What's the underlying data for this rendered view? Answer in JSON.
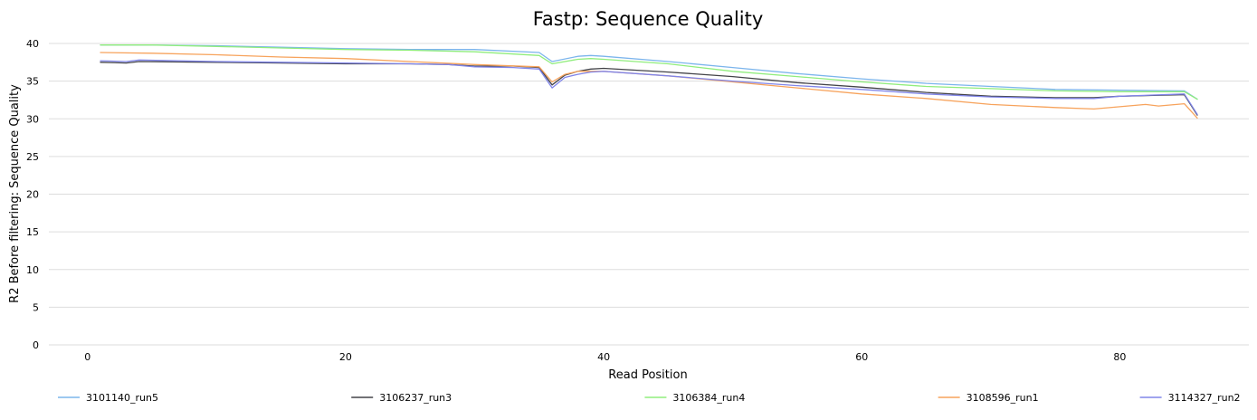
{
  "chart_data": {
    "type": "line",
    "title": "Fastp: Sequence Quality",
    "xlabel": "Read Position",
    "ylabel": "R2 Before filtering: Sequence Quality",
    "xlim": [
      -3,
      90
    ],
    "ylim": [
      0,
      40
    ],
    "x_ticks": [
      0,
      20,
      40,
      60,
      80
    ],
    "y_ticks": [
      0,
      5,
      10,
      15,
      20,
      25,
      30,
      35,
      40
    ],
    "grid": true,
    "legend_position": "bottom",
    "series": [
      {
        "name": "3101140_run5",
        "color": "#7cb5ec",
        "points": [
          [
            1,
            39.8
          ],
          [
            5,
            39.8
          ],
          [
            10,
            39.7
          ],
          [
            15,
            39.5
          ],
          [
            20,
            39.3
          ],
          [
            25,
            39.2
          ],
          [
            30,
            39.2
          ],
          [
            35,
            38.8
          ],
          [
            36,
            37.6
          ],
          [
            38,
            38.3
          ],
          [
            39,
            38.4
          ],
          [
            40,
            38.3
          ],
          [
            45,
            37.6
          ],
          [
            50,
            36.8
          ],
          [
            55,
            36.0
          ],
          [
            60,
            35.3
          ],
          [
            65,
            34.7
          ],
          [
            70,
            34.3
          ],
          [
            75,
            33.9
          ],
          [
            80,
            33.8
          ],
          [
            85,
            33.7
          ],
          [
            86,
            32.6
          ]
        ]
      },
      {
        "name": "3106237_run3",
        "color": "#434348",
        "points": [
          [
            1,
            37.5
          ],
          [
            3,
            37.4
          ],
          [
            4,
            37.6
          ],
          [
            10,
            37.5
          ],
          [
            15,
            37.4
          ],
          [
            20,
            37.3
          ],
          [
            25,
            37.3
          ],
          [
            28,
            37.2
          ],
          [
            30,
            37.0
          ],
          [
            33,
            37.0
          ],
          [
            35,
            36.8
          ],
          [
            36,
            34.5
          ],
          [
            37,
            35.8
          ],
          [
            38,
            36.3
          ],
          [
            39,
            36.6
          ],
          [
            40,
            36.7
          ],
          [
            45,
            36.2
          ],
          [
            50,
            35.6
          ],
          [
            55,
            34.8
          ],
          [
            60,
            34.2
          ],
          [
            65,
            33.5
          ],
          [
            70,
            33.0
          ],
          [
            75,
            32.8
          ],
          [
            78,
            32.8
          ],
          [
            80,
            33.0
          ],
          [
            85,
            33.2
          ],
          [
            86,
            30.5
          ]
        ]
      },
      {
        "name": "3106384_run4",
        "color": "#90ed7d",
        "points": [
          [
            1,
            39.8
          ],
          [
            5,
            39.8
          ],
          [
            10,
            39.6
          ],
          [
            15,
            39.4
          ],
          [
            20,
            39.2
          ],
          [
            25,
            39.1
          ],
          [
            30,
            38.9
          ],
          [
            35,
            38.4
          ],
          [
            36,
            37.3
          ],
          [
            38,
            37.9
          ],
          [
            39,
            38.0
          ],
          [
            40,
            37.9
          ],
          [
            45,
            37.3
          ],
          [
            50,
            36.3
          ],
          [
            55,
            35.6
          ],
          [
            60,
            34.9
          ],
          [
            65,
            34.3
          ],
          [
            70,
            34.0
          ],
          [
            75,
            33.7
          ],
          [
            80,
            33.6
          ],
          [
            85,
            33.6
          ],
          [
            86,
            32.6
          ]
        ]
      },
      {
        "name": "3108596_run1",
        "color": "#f7a35c",
        "points": [
          [
            1,
            38.8
          ],
          [
            5,
            38.7
          ],
          [
            10,
            38.5
          ],
          [
            15,
            38.2
          ],
          [
            20,
            38.0
          ],
          [
            25,
            37.6
          ],
          [
            30,
            37.2
          ],
          [
            35,
            36.9
          ],
          [
            36,
            34.9
          ],
          [
            37,
            35.9
          ],
          [
            38,
            36.3
          ],
          [
            40,
            36.3
          ],
          [
            45,
            35.7
          ],
          [
            50,
            34.9
          ],
          [
            55,
            34.1
          ],
          [
            60,
            33.3
          ],
          [
            65,
            32.7
          ],
          [
            70,
            31.9
          ],
          [
            75,
            31.5
          ],
          [
            78,
            31.3
          ],
          [
            80,
            31.6
          ],
          [
            82,
            31.9
          ],
          [
            83,
            31.7
          ],
          [
            85,
            32.0
          ],
          [
            86,
            30.1
          ]
        ]
      },
      {
        "name": "3114327_run2",
        "color": "#8085e9",
        "points": [
          [
            1,
            37.7
          ],
          [
            3,
            37.6
          ],
          [
            4,
            37.8
          ],
          [
            10,
            37.6
          ],
          [
            15,
            37.5
          ],
          [
            20,
            37.4
          ],
          [
            25,
            37.3
          ],
          [
            28,
            37.2
          ],
          [
            30,
            36.9
          ],
          [
            33,
            36.8
          ],
          [
            35,
            36.6
          ],
          [
            36,
            34.1
          ],
          [
            37,
            35.5
          ],
          [
            38,
            35.9
          ],
          [
            39,
            36.2
          ],
          [
            40,
            36.3
          ],
          [
            45,
            35.7
          ],
          [
            50,
            35.0
          ],
          [
            55,
            34.4
          ],
          [
            60,
            33.9
          ],
          [
            65,
            33.3
          ],
          [
            70,
            32.9
          ],
          [
            75,
            32.7
          ],
          [
            78,
            32.7
          ],
          [
            80,
            33.0
          ],
          [
            85,
            33.3
          ],
          [
            86,
            30.6
          ]
        ]
      }
    ]
  }
}
